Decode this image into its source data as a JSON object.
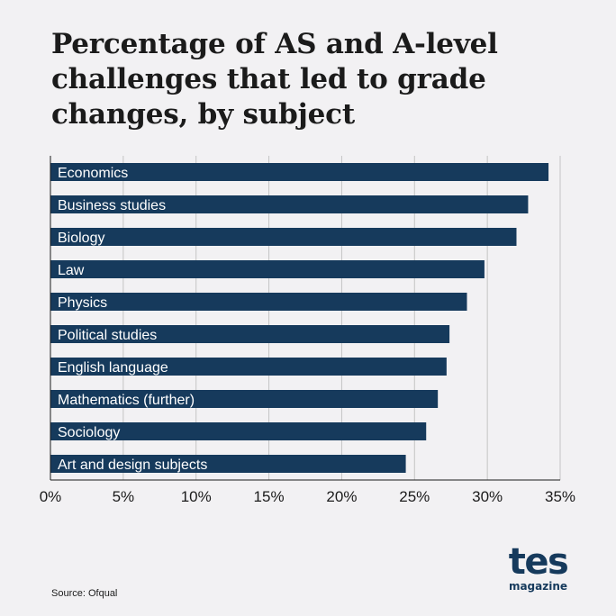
{
  "title": "Percentage of AS and A-level challenges that led to grade changes, by subject",
  "source": "Source: Ofqual",
  "logo": {
    "word": "tes",
    "sub": "magazine"
  },
  "colors": {
    "bar": "#163a5c",
    "grid": "#c4c4c4",
    "axis": "#1b1b1b"
  },
  "chart_data": {
    "type": "bar",
    "orientation": "horizontal",
    "title": "Percentage of AS and A-level challenges that led to grade changes, by subject",
    "xlabel": "",
    "ylabel": "",
    "xlim": [
      0,
      35
    ],
    "ticks": [
      0,
      5,
      10,
      15,
      20,
      25,
      30,
      35
    ],
    "tick_labels": [
      "0%",
      "5%",
      "10%",
      "15%",
      "20%",
      "25%",
      "30%",
      "35%"
    ],
    "grid": true,
    "categories": [
      "Economics",
      "Business studies",
      "Biology",
      "Law",
      "Physics",
      "Political studies",
      "English language",
      "Mathematics (further)",
      "Sociology",
      "Art and design subjects"
    ],
    "values": [
      34.2,
      32.8,
      32.0,
      29.8,
      28.6,
      27.4,
      27.2,
      26.6,
      25.8,
      24.4
    ]
  }
}
